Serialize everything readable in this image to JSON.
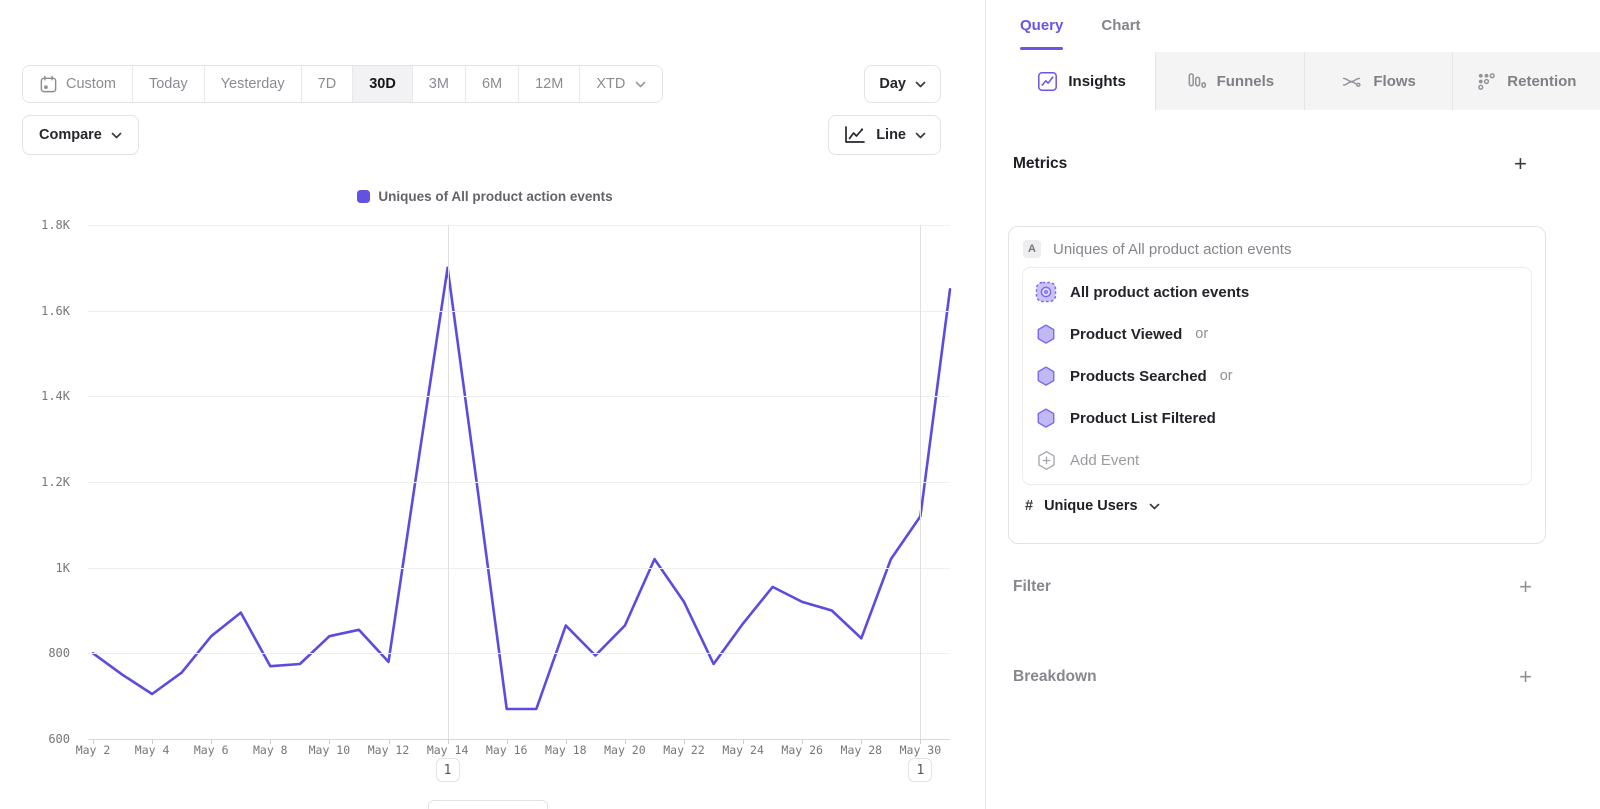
{
  "toolbar": {
    "date_ranges": [
      {
        "label": "Custom",
        "icon": "calendar"
      },
      {
        "label": "Today"
      },
      {
        "label": "Yesterday"
      },
      {
        "label": "7D"
      },
      {
        "label": "30D",
        "active": true
      },
      {
        "label": "3M"
      },
      {
        "label": "6M"
      },
      {
        "label": "12M"
      },
      {
        "label": "XTD",
        "caret": true
      }
    ],
    "granularity_label": "Day",
    "compare_label": "Compare",
    "chart_type_label": "Line"
  },
  "legend": {
    "label": "Uniques of All product action events"
  },
  "chart_data": {
    "type": "line",
    "title": "Uniques of All product action events",
    "xlabel": "",
    "ylabel": "",
    "legend_position": "top",
    "grid": true,
    "line_color": "#5B4BE1",
    "ylim": [
      600,
      1800
    ],
    "yticks": [
      {
        "label": "1.8K",
        "value": 1800
      },
      {
        "label": "1.6K",
        "value": 1600
      },
      {
        "label": "1.4K",
        "value": 1400
      },
      {
        "label": "1.2K",
        "value": 1200
      },
      {
        "label": "1K",
        "value": 1000
      },
      {
        "label": "800",
        "value": 800
      },
      {
        "label": "600",
        "value": 600
      }
    ],
    "x_ticks_every": 2,
    "x": [
      "May 2",
      "May 3",
      "May 4",
      "May 5",
      "May 6",
      "May 7",
      "May 8",
      "May 9",
      "May 10",
      "May 11",
      "May 12",
      "May 13",
      "May 14",
      "May 15",
      "May 16",
      "May 17",
      "May 18",
      "May 19",
      "May 20",
      "May 21",
      "May 22",
      "May 23",
      "May 24",
      "May 25",
      "May 26",
      "May 27",
      "May 28",
      "May 29",
      "May 30",
      "May 31"
    ],
    "values": [
      800,
      750,
      705,
      755,
      840,
      895,
      770,
      775,
      840,
      855,
      780,
      1245,
      1700,
      1190,
      670,
      670,
      865,
      795,
      865,
      1020,
      920,
      775,
      870,
      955,
      920,
      900,
      835,
      1020,
      1120,
      1650
    ],
    "annotations": [
      {
        "x": "May 14",
        "label": "1"
      },
      {
        "x": "May 30",
        "label": "1"
      }
    ]
  },
  "panel": {
    "nav_tabs": [
      {
        "label": "Query",
        "active": true
      },
      {
        "label": "Chart",
        "active": false
      }
    ],
    "report_tabs": [
      {
        "id": "insights",
        "label": "Insights",
        "active": true
      },
      {
        "id": "funnels",
        "label": "Funnels",
        "active": false
      },
      {
        "id": "flows",
        "label": "Flows",
        "active": false
      },
      {
        "id": "retention",
        "label": "Retention",
        "active": false
      }
    ],
    "metrics": {
      "title": "Metrics",
      "add_label": "+",
      "header": {
        "letter": "A",
        "text": "Uniques of All product action events"
      },
      "events": [
        {
          "type": "all",
          "name": "All product action events"
        },
        {
          "type": "event",
          "name": "Product Viewed",
          "suffix": "or"
        },
        {
          "type": "event",
          "name": "Products Searched",
          "suffix": "or"
        },
        {
          "type": "event",
          "name": "Product List Filtered"
        }
      ],
      "add_event_label": "Add Event",
      "aggregation": {
        "hash": "#",
        "label": "Unique Users"
      }
    },
    "sections": [
      {
        "label": "Filter",
        "add_label": "+"
      },
      {
        "label": "Breakdown",
        "add_label": "+"
      }
    ]
  }
}
